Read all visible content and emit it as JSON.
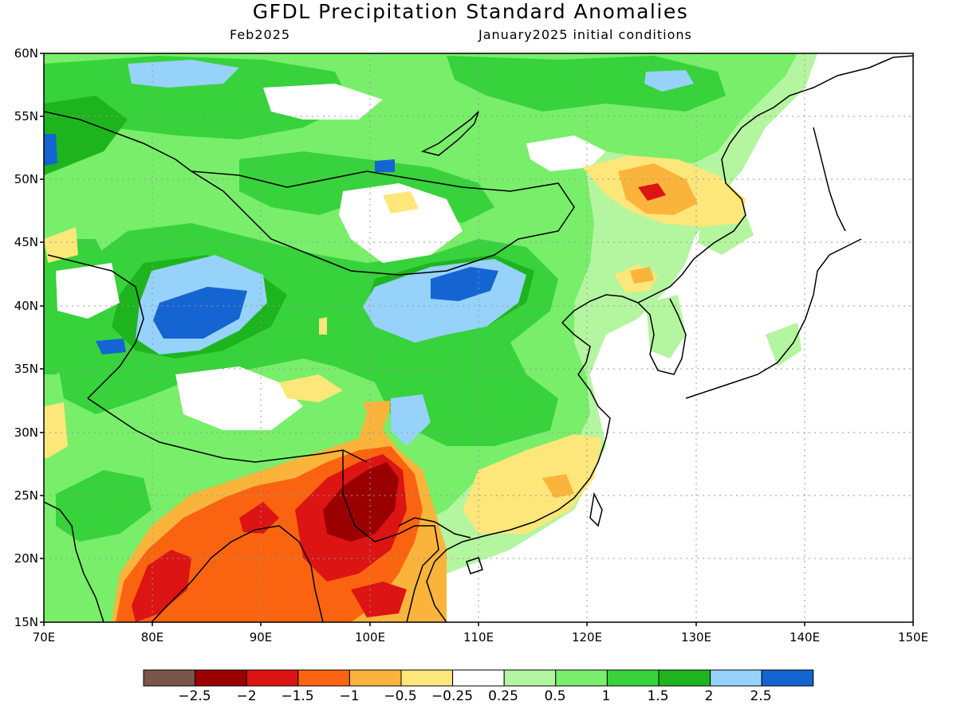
{
  "title": "GFDL Precipitation Standard Anomalies",
  "subtitle_left": "Feb2025",
  "subtitle_right": "January2025 initial conditions",
  "lat_labels": [
    "60N",
    "55N",
    "50N",
    "45N",
    "40N",
    "35N",
    "30N",
    "25N",
    "20N",
    "15N"
  ],
  "lon_labels": [
    "70E",
    "80E",
    "90E",
    "100E",
    "110E",
    "120E",
    "130E",
    "140E",
    "150E"
  ],
  "colorbar": {
    "colors": [
      "#7a5548",
      "#9b0000",
      "#dc1414",
      "#fa6410",
      "#fab43c",
      "#fde67a",
      "#ffffff",
      "#b4f5a0",
      "#78ee6a",
      "#37d23c",
      "#1eb41e",
      "#96d2fa",
      "#1464d2"
    ],
    "labels": [
      "-2.5",
      "-2",
      "-1.5",
      "-1",
      "-0.5",
      "-0.25",
      "0.25",
      "0.5",
      "1",
      "1.5",
      "2",
      "2.5"
    ]
  }
}
